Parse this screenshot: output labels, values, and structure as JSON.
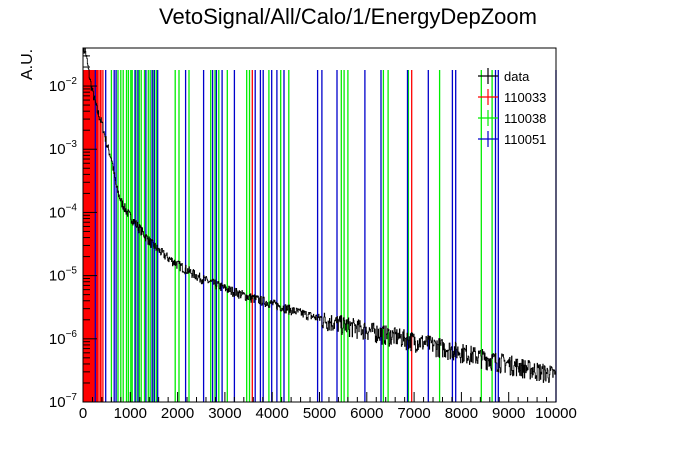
{
  "chart_data": {
    "type": "histogram",
    "title": "VetoSignal/All/Calo/1/EnergyDepZoom",
    "xlabel": "",
    "ylabel": "A.U.",
    "xlim": [
      0,
      10000
    ],
    "ylim": [
      1e-07,
      0.04
    ],
    "yscale": "log",
    "grid": false,
    "legend_position": "top-right",
    "x_ticks": [
      0,
      1000,
      2000,
      3000,
      4000,
      5000,
      6000,
      7000,
      8000,
      9000,
      10000
    ],
    "y_ticks": [
      {
        "base": "10",
        "exp": "−7",
        "value": 1e-07
      },
      {
        "base": "10",
        "exp": "−6",
        "value": 1e-06
      },
      {
        "base": "10",
        "exp": "−5",
        "value": 1e-05
      },
      {
        "base": "10",
        "exp": "−4",
        "value": 0.0001
      },
      {
        "base": "10",
        "exp": "−3",
        "value": 0.001
      },
      {
        "base": "10",
        "exp": "−2",
        "value": 0.01
      }
    ],
    "series": [
      {
        "name": "data",
        "color": "#000000",
        "style": "steps",
        "points": [
          [
            0,
            0.04
          ],
          [
            50,
            0.035
          ],
          [
            100,
            0.02
          ],
          [
            150,
            0.012
          ],
          [
            200,
            0.008
          ],
          [
            300,
            0.004
          ],
          [
            400,
            0.0025
          ],
          [
            500,
            0.0012
          ],
          [
            600,
            0.0007
          ],
          [
            700,
            0.00025
          ],
          [
            800,
            0.00015
          ],
          [
            900,
            0.00011
          ],
          [
            1000,
            8.5e-05
          ],
          [
            1200,
            5.5e-05
          ],
          [
            1400,
            3.5e-05
          ],
          [
            1600,
            2.5e-05
          ],
          [
            1800,
            1.9e-05
          ],
          [
            2000,
            1.5e-05
          ],
          [
            2500,
            9e-06
          ],
          [
            3000,
            6.3e-06
          ],
          [
            3500,
            4.6e-06
          ],
          [
            4000,
            3.6e-06
          ],
          [
            4500,
            2.7e-06
          ],
          [
            5000,
            2.1e-06
          ],
          [
            5500,
            1.7e-06
          ],
          [
            6000,
            1.4e-06
          ],
          [
            6500,
            1.15e-06
          ],
          [
            7000,
            9.5e-07
          ],
          [
            7500,
            7.8e-07
          ],
          [
            8000,
            6.3e-07
          ],
          [
            8500,
            5e-07
          ],
          [
            9000,
            4.1e-07
          ],
          [
            9500,
            3.3e-07
          ],
          [
            10000,
            2.7e-07
          ]
        ]
      },
      {
        "name": "110033",
        "color": "#ff0000",
        "style": "spikes",
        "x": [
          15,
          30,
          45,
          60,
          75,
          90,
          105,
          120,
          135,
          150,
          165,
          180,
          195,
          210,
          225,
          240,
          255,
          270,
          285,
          300,
          320,
          360,
          380,
          420,
          3580,
          6950
        ]
      },
      {
        "name": "110038",
        "color": "#00ee00",
        "style": "spikes",
        "x": [
          600,
          740,
          800,
          850,
          920,
          960,
          1010,
          1040,
          1120,
          1190,
          1230,
          1300,
          1380,
          1420,
          1480,
          1550,
          1950,
          2030,
          2240,
          2700,
          2790,
          2870,
          3050,
          3460,
          3520,
          3930,
          4180,
          4350,
          5460,
          5520,
          5600,
          6350,
          6450,
          6880,
          7540,
          8420,
          8650
        ]
      },
      {
        "name": "110051",
        "color": "#0000cc",
        "style": "spikes",
        "x": [
          260,
          480,
          660,
          700,
          1100,
          1160,
          1330,
          1460,
          1510,
          1580,
          2170,
          2550,
          2740,
          2820,
          2940,
          3200,
          3640,
          3750,
          3810,
          3990,
          4100,
          4250,
          4960,
          5050,
          5370,
          5960,
          6300,
          6860,
          7300,
          7810,
          7880,
          8720,
          8780,
          10000
        ]
      }
    ]
  }
}
